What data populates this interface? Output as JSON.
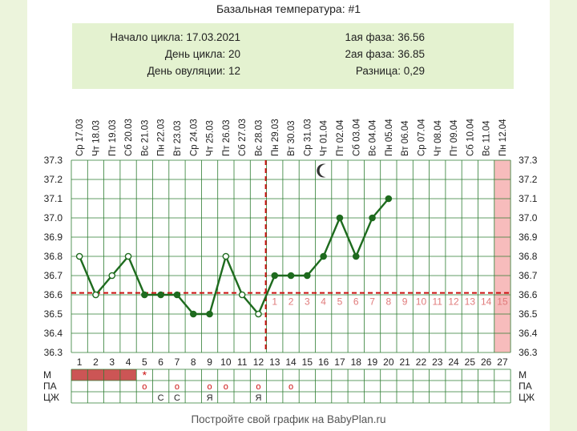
{
  "title": "Базальная температура: #1",
  "info": {
    "left": [
      "Начало цикла: 17.03.2021",
      "День цикла: 20",
      "День овуляции: 12"
    ],
    "right": [
      "1ая фаза: 36.56",
      "2ая фаза: 36.85",
      "Разница: 0,29"
    ]
  },
  "footer": "Постройте свой график на BabyPlan.ru",
  "colors": {
    "grid": "#2e7d32",
    "line": "#1e6b1e",
    "coverline": "#cc1111",
    "period": "#cc5555",
    "pink": "#f7bcbc",
    "phase_numbers": "#e07a7a"
  },
  "chart_data": {
    "type": "line",
    "title": "Базальная температура: #1",
    "days": [
      "1",
      "2",
      "3",
      "4",
      "5",
      "6",
      "7",
      "8",
      "9",
      "10",
      "11",
      "12",
      "13",
      "14",
      "15",
      "16",
      "17",
      "18",
      "19",
      "20",
      "21",
      "22",
      "23",
      "24",
      "25",
      "26",
      "27"
    ],
    "dates": [
      "Ср 17.03",
      "Чт 18.03",
      "Пт 19.03",
      "Сб 20.03",
      "Вс 21.03",
      "Пн 22.03",
      "Вт 23.03",
      "Ср 24.03",
      "Чт 25.03",
      "Пт 26.03",
      "Сб 27.03",
      "Вс 28.03",
      "Пн 29.03",
      "Вт 30.03",
      "Ср 31.03",
      "Чт 01.04",
      "Пт 02.04",
      "Сб 03.04",
      "Вс 04.04",
      "Пн 05.04",
      "Вт 06.04",
      "Ср 07.04",
      "Чт 08.04",
      "Пт 09.04",
      "Сб 10.04",
      "Вс 11.04",
      "Пн 12.04"
    ],
    "temperature": [
      36.8,
      36.6,
      36.7,
      36.8,
      36.6,
      36.6,
      36.6,
      36.5,
      36.5,
      36.8,
      36.6,
      36.5,
      36.7,
      36.7,
      36.7,
      36.8,
      37.0,
      36.8,
      37.0,
      37.1
    ],
    "marker_style": [
      "open",
      "open",
      "open",
      "open",
      "filled",
      "filled",
      "filled",
      "filled",
      "filled",
      "open",
      "open",
      "open",
      "filled",
      "filled",
      "filled",
      "filled",
      "filled",
      "filled",
      "filled",
      "filled"
    ],
    "y_ticks": [
      "37.3",
      "37.2",
      "37.1",
      "37.0",
      "36.9",
      "36.8",
      "36.7",
      "36.6",
      "36.5",
      "36.4",
      "36.3"
    ],
    "ylim": [
      36.3,
      37.3
    ],
    "coverline": 36.61,
    "ovulation_day": 12,
    "phase2_labels": [
      "1",
      "2",
      "3",
      "4",
      "5",
      "6",
      "7",
      "8",
      "9",
      "10",
      "11",
      "12",
      "13",
      "14",
      "15"
    ],
    "expected_period_day": 27,
    "moon_day": 16,
    "moon_icon": "crescent-moon-icon",
    "rows": {
      "labels": [
        "М",
        "ПА",
        "ЦЖ"
      ],
      "M_period_days": [
        1,
        2,
        3,
        4
      ],
      "M_star_day": 5,
      "PA_days": [
        5,
        7,
        9,
        10,
        12,
        14
      ],
      "PA_symbol": "o",
      "CZ_marks": [
        {
          "day": 6,
          "text": "С"
        },
        {
          "day": 7,
          "text": "С"
        },
        {
          "day": 9,
          "text": "Я"
        },
        {
          "day": 12,
          "text": "Я"
        }
      ],
      "M_star_symbol": "*"
    },
    "grid": true
  }
}
